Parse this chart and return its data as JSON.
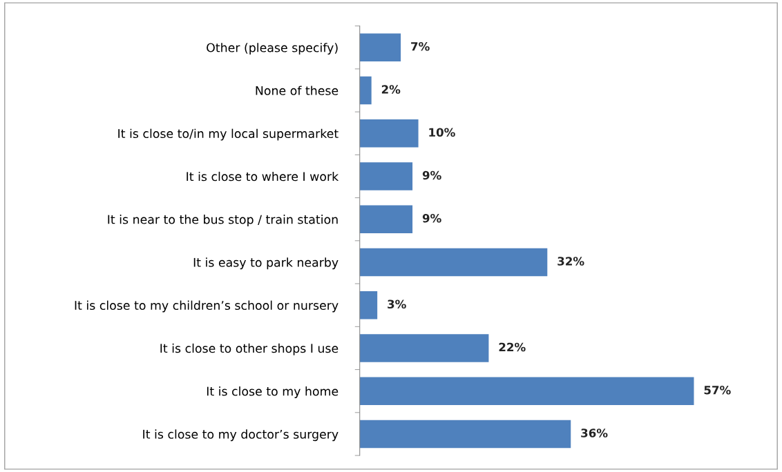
{
  "chart_data": {
    "type": "bar",
    "orientation": "horizontal",
    "categories": [
      "Other (please specify)",
      "None of these",
      "It is close to/in my local supermarket",
      "It is close to where I work",
      "It is near to the bus stop / train station",
      "It is easy to park nearby",
      "It is close to my children’s school or nursery",
      "It is close to other shops I use",
      "It is close to my home",
      "It is close to my doctor’s surgery"
    ],
    "values": [
      7,
      2,
      10,
      9,
      9,
      32,
      3,
      22,
      57,
      36
    ],
    "value_labels": [
      "7%",
      "2%",
      "10%",
      "9%",
      "9%",
      "32%",
      "3%",
      "22%",
      "57%",
      "36%"
    ],
    "color": "#4f81bd",
    "grid": false,
    "legend": false
  }
}
